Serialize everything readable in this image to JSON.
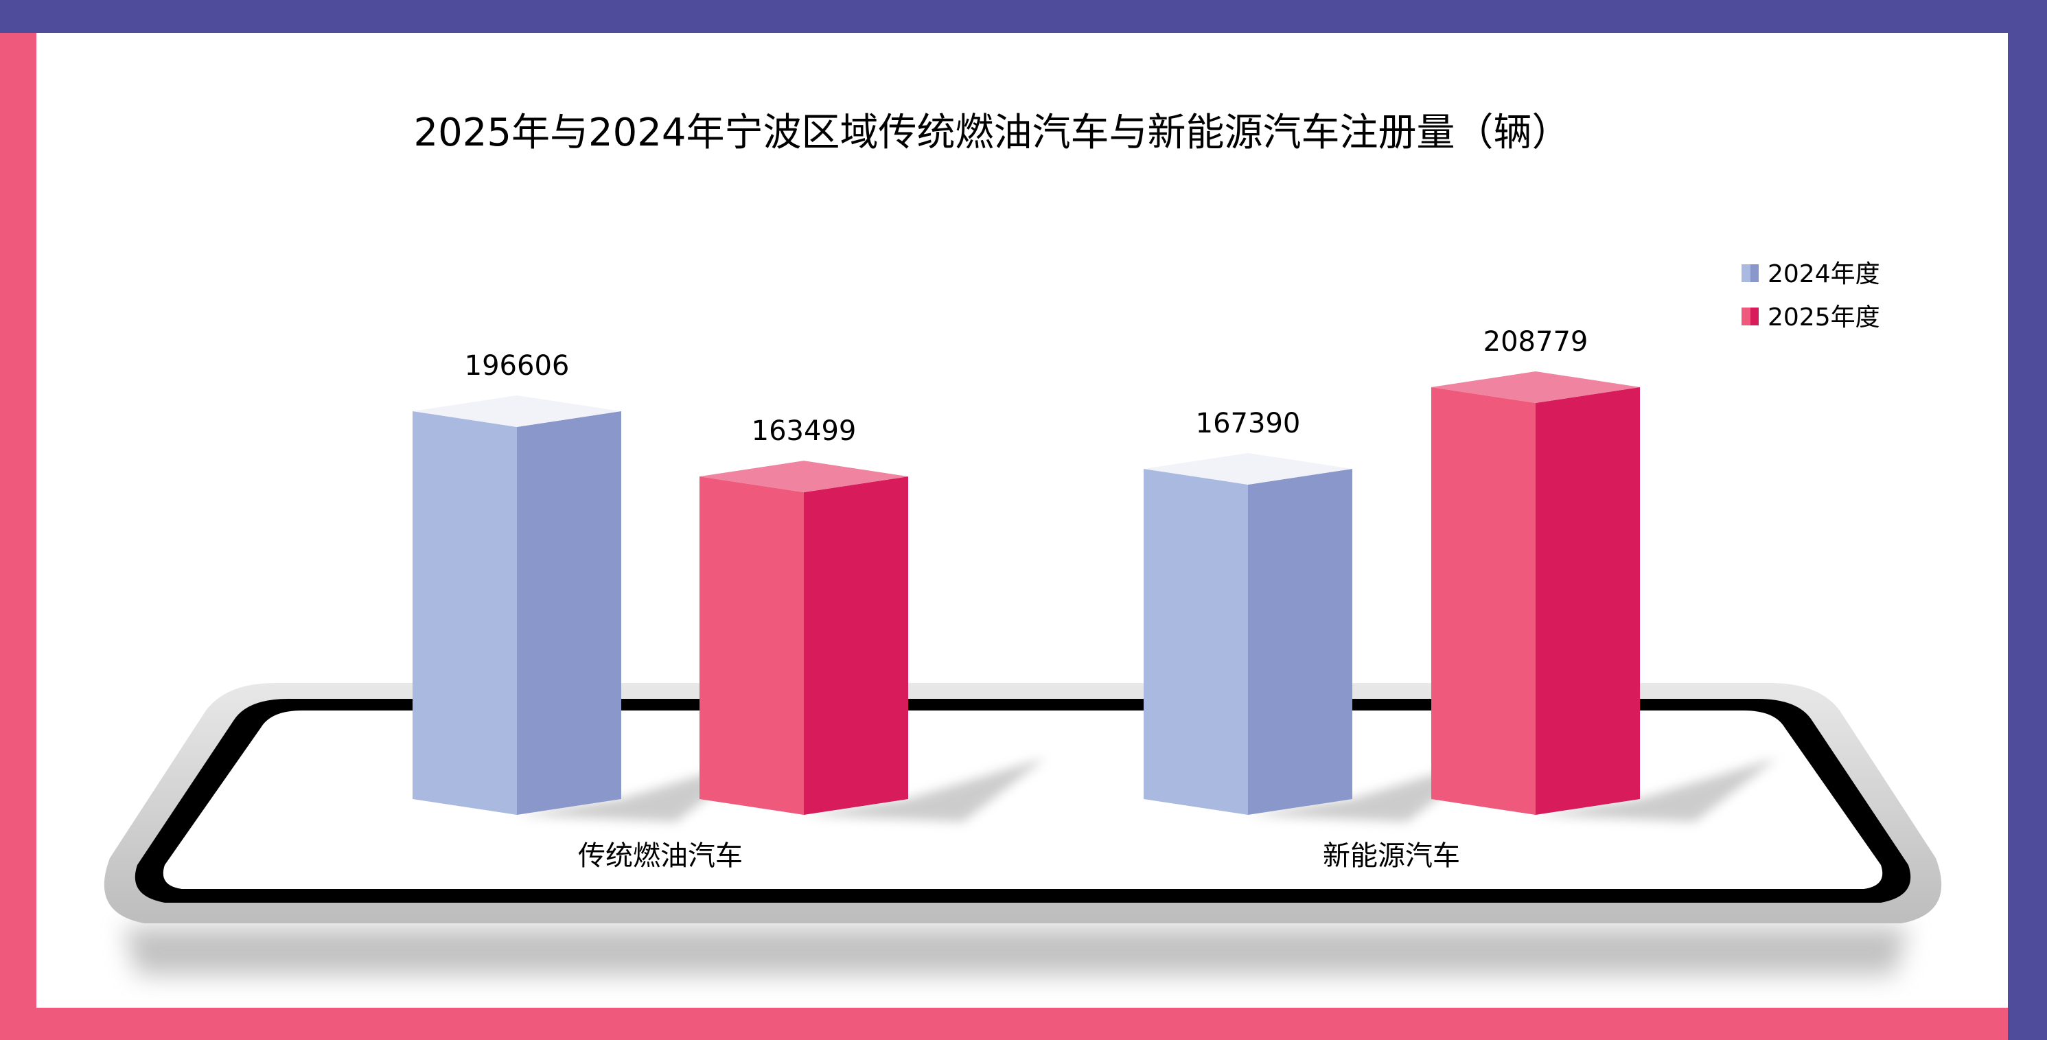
{
  "chart_data": {
    "type": "bar",
    "title": "2025年与2024年宁波区域传统燃油汽车与新能源汽车注册量（辆）",
    "categories": [
      "传统燃油汽车",
      "新能源汽车"
    ],
    "series": [
      {
        "name": "2024年度",
        "values": [
          196606,
          167390
        ],
        "color_light": "#AAB9DF",
        "color_dark": "#8A97CA",
        "color_top": "#F2F3F8"
      },
      {
        "name": "2025年度",
        "values": [
          163499,
          208779
        ],
        "color_light": "#EF5A7C",
        "color_dark": "#D81B5A",
        "color_top": "#F083A0"
      }
    ],
    "value_labels": [
      [
        "196606",
        "167390"
      ],
      [
        "163499",
        "208779"
      ]
    ],
    "xlabel": "",
    "ylabel": "",
    "ylim": [
      0,
      210000
    ],
    "grid": false,
    "legend_position": "top-right"
  },
  "colors": {
    "frame_purple": "#4F4C9C",
    "frame_pink": "#EF5A7C"
  }
}
